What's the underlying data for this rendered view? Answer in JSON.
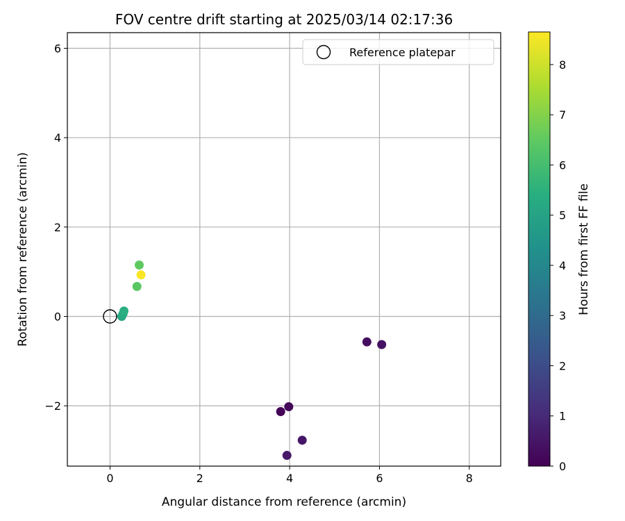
{
  "chart_data": {
    "type": "scatter",
    "title": "FOV centre drift starting at 2025/03/14 02:17:36",
    "xlabel": "Angular distance from reference (arcmin)",
    "ylabel": "Rotation from reference (arcmin)",
    "xlim": [
      -0.95,
      8.7
    ],
    "ylim": [
      -3.35,
      6.35
    ],
    "xticks": [
      0,
      2,
      4,
      6,
      8
    ],
    "yticks": [
      -2,
      0,
      2,
      4,
      6
    ],
    "ytick_labels": [
      "−2",
      "0",
      "2",
      "4",
      "6"
    ],
    "grid": true,
    "legend": {
      "position": "top-right",
      "label": "Reference platepar"
    },
    "reference_point": {
      "x": 0,
      "y": 0
    },
    "colorbar": {
      "label": "Hours from first FF file",
      "range": [
        0,
        8.65
      ],
      "ticks": [
        0,
        1,
        2,
        3,
        4,
        5,
        6,
        7,
        8
      ],
      "colormap": "viridis"
    },
    "points": [
      {
        "x": 3.8,
        "y": -2.13,
        "hours": 0.05
      },
      {
        "x": 3.98,
        "y": -2.02,
        "hours": 0.15
      },
      {
        "x": 5.72,
        "y": -0.57,
        "hours": 0.3
      },
      {
        "x": 6.05,
        "y": -0.63,
        "hours": 0.4
      },
      {
        "x": 4.28,
        "y": -2.77,
        "hours": 0.55
      },
      {
        "x": 3.94,
        "y": -3.11,
        "hours": 0.6
      },
      {
        "x": 0.26,
        "y": 0.0,
        "hours": 5.2
      },
      {
        "x": 0.29,
        "y": 0.06,
        "hours": 5.3
      },
      {
        "x": 0.31,
        "y": 0.12,
        "hours": 5.4
      },
      {
        "x": 0.6,
        "y": 0.67,
        "hours": 6.4
      },
      {
        "x": 0.65,
        "y": 1.15,
        "hours": 6.5
      },
      {
        "x": 0.69,
        "y": 0.93,
        "hours": 8.6
      }
    ]
  }
}
